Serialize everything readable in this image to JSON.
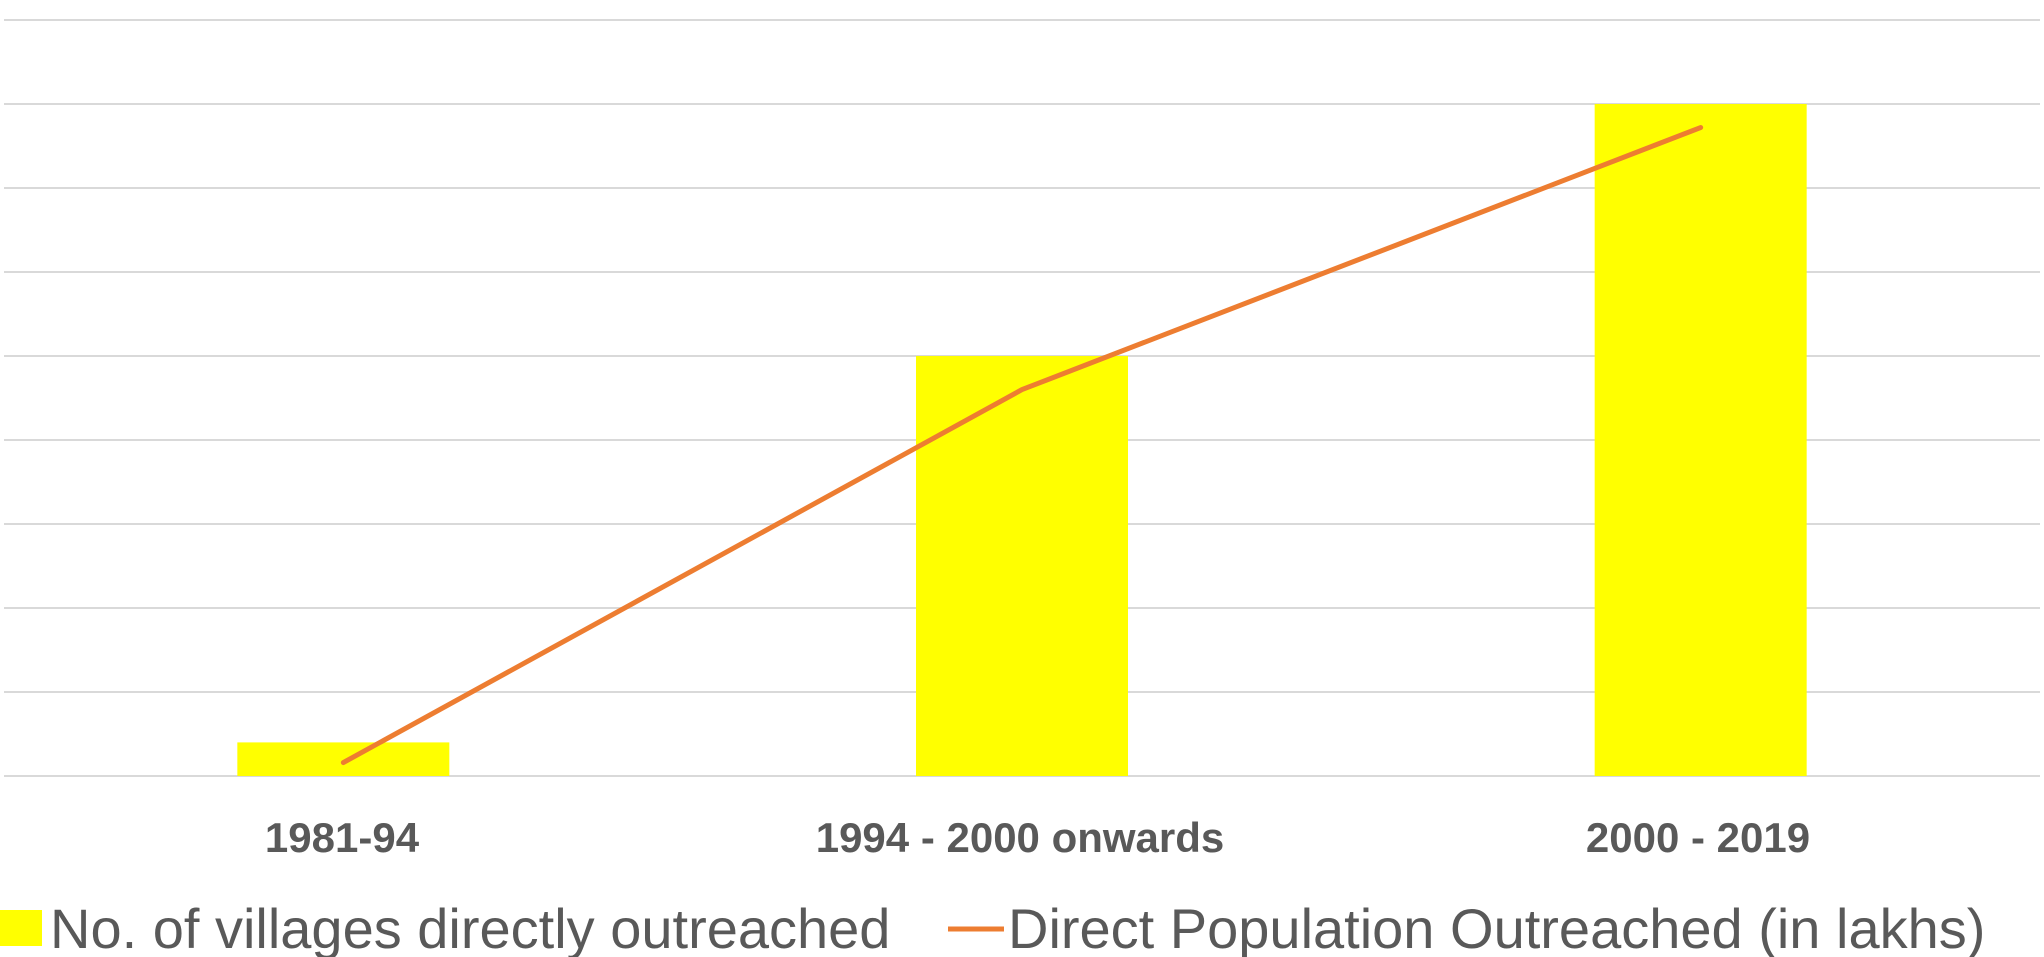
{
  "chart_data": {
    "type": "bar",
    "categories": [
      "1981-94",
      "1994 - 2000 onwards",
      "2000 - 2019"
    ],
    "series": [
      {
        "name": "No. of villages directly outreached",
        "type": "bar",
        "values": [
          20,
          250,
          400
        ],
        "color": "#FFFF00"
      },
      {
        "name": "Direct Population Outreached (in lakhs)",
        "type": "line",
        "values": [
          8,
          230,
          386
        ],
        "color": "#ED7D31"
      }
    ],
    "ylim": [
      0,
      450
    ],
    "grid": true,
    "legend": "bottom",
    "title": "",
    "xlabel": "",
    "ylabel": ""
  }
}
